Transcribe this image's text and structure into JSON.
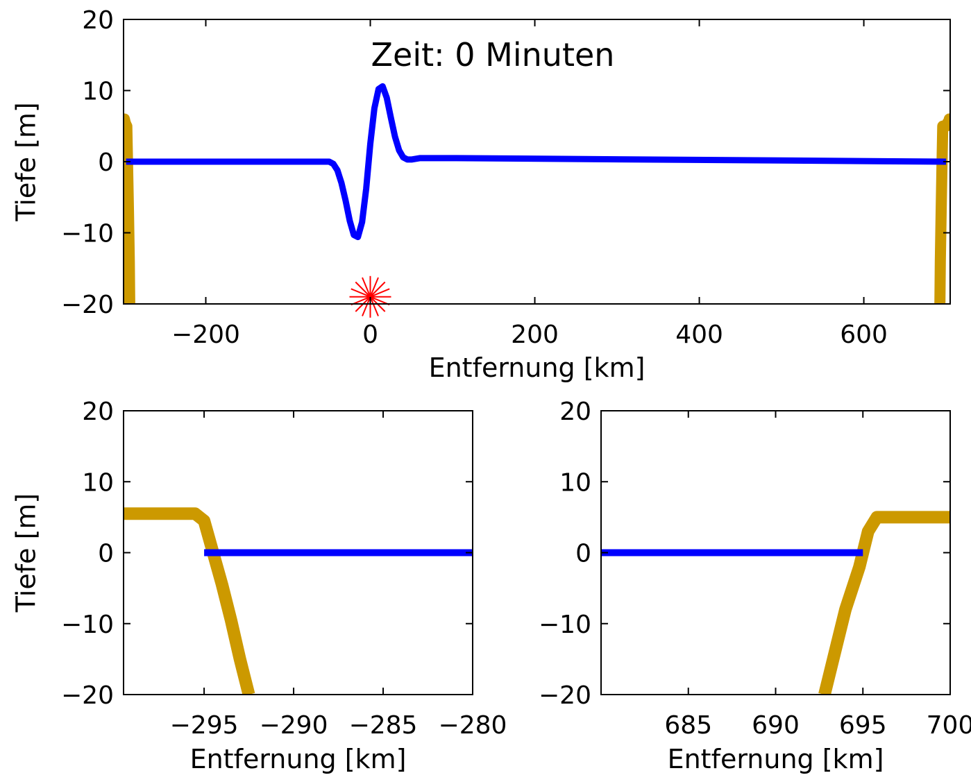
{
  "colors": {
    "wave": "#0000ff",
    "bathymetry": "#cc9900",
    "epicenter": "#ff0000",
    "axes": "#000000"
  },
  "chart_data": [
    {
      "type": "line",
      "title": "Zeit: 0 Minuten",
      "xlabel": "Entfernung [km]",
      "ylabel": "Tiefe [m]",
      "xlim": [
        -300,
        705
      ],
      "ylim": [
        -20,
        20
      ],
      "xticks": [
        -200,
        0,
        200,
        400,
        600
      ],
      "yticks": [
        -20,
        -10,
        0,
        10,
        20
      ],
      "xtick_labels": [
        "−200",
        "0",
        "200",
        "400",
        "600"
      ],
      "ytick_labels": [
        "−20",
        "−10",
        "0",
        "10",
        "20"
      ],
      "grid": false,
      "series": [
        {
          "role": "wave",
          "x": [
            -297,
            -50,
            -45,
            -40,
            -35,
            -30,
            -25,
            -20,
            -15,
            -10,
            -5,
            0,
            5,
            10,
            15,
            20,
            25,
            30,
            35,
            40,
            45,
            50,
            55,
            60,
            105,
            700
          ],
          "y": [
            0,
            0,
            -0.3,
            -1.2,
            -3.0,
            -5.5,
            -8.3,
            -10.3,
            -10.6,
            -8.5,
            -3.8,
            2.5,
            7.5,
            10.2,
            10.6,
            9.0,
            6.2,
            3.5,
            1.6,
            0.6,
            0.3,
            0.3,
            0.4,
            0.5,
            0.5,
            0
          ]
        },
        {
          "role": "bathymetry",
          "x": [
            -300,
            -299,
            -298,
            -297,
            -296,
            -295.5,
            -295,
            -294,
            -293,
            -292.5
          ],
          "y": [
            5.5,
            6.0,
            5.5,
            5.2,
            5.0,
            2.0,
            -1.0,
            -7.0,
            -14.0,
            -20.0
          ]
        },
        {
          "role": "bathymetry",
          "x": [
            692.5,
            693,
            694,
            695,
            695.5,
            696,
            697,
            698,
            699,
            700,
            701,
            702,
            703,
            704,
            705
          ],
          "y": [
            -20.0,
            -14.0,
            -7.0,
            -1.0,
            2.0,
            5.0,
            5.0,
            5.0,
            5.0,
            5.0,
            5.2,
            5.5,
            5.5,
            6.0,
            6.0
          ]
        }
      ],
      "epicenter": {
        "x": 0,
        "y": -19
      }
    },
    {
      "type": "line",
      "xlabel": "Entfernung [km]",
      "ylabel": "Tiefe [m]",
      "xlim": [
        -299.5,
        -280
      ],
      "ylim": [
        -20,
        20
      ],
      "xticks": [
        -295,
        -290,
        -285,
        -280
      ],
      "yticks": [
        -20,
        -10,
        0,
        10,
        20
      ],
      "xtick_labels": [
        "−295",
        "−290",
        "−285",
        "−280"
      ],
      "ytick_labels": [
        "−20",
        "−10",
        "0",
        "10",
        "20"
      ],
      "grid": false,
      "series": [
        {
          "role": "bathymetry",
          "x": [
            -299.5,
            -295.5,
            -295,
            -294.5,
            -294,
            -293.5,
            -293,
            -292.5
          ],
          "y": [
            5.5,
            5.5,
            4.5,
            0.0,
            -4.5,
            -9.5,
            -15.0,
            -20.0
          ]
        },
        {
          "role": "wave",
          "x": [
            -295,
            -280
          ],
          "y": [
            0,
            0
          ]
        }
      ]
    },
    {
      "type": "line",
      "xlabel": "Entfernung [km]",
      "xlim": [
        680,
        700
      ],
      "ylim": [
        -20,
        20
      ],
      "xticks": [
        685,
        690,
        695,
        700
      ],
      "yticks": [
        -20,
        -10,
        0,
        10,
        20
      ],
      "xtick_labels": [
        "685",
        "690",
        "695",
        "700"
      ],
      "ytick_labels": [
        "−20",
        "−10",
        "0",
        "10",
        "20"
      ],
      "grid": false,
      "series": [
        {
          "role": "bathymetry",
          "x": [
            692.8,
            693.5,
            694,
            694.8,
            695.3,
            695.8,
            700
          ],
          "y": [
            -20,
            -13,
            -8,
            -2,
            3,
            5,
            5
          ]
        },
        {
          "role": "wave",
          "x": [
            680,
            695
          ],
          "y": [
            0,
            0
          ]
        }
      ]
    }
  ]
}
